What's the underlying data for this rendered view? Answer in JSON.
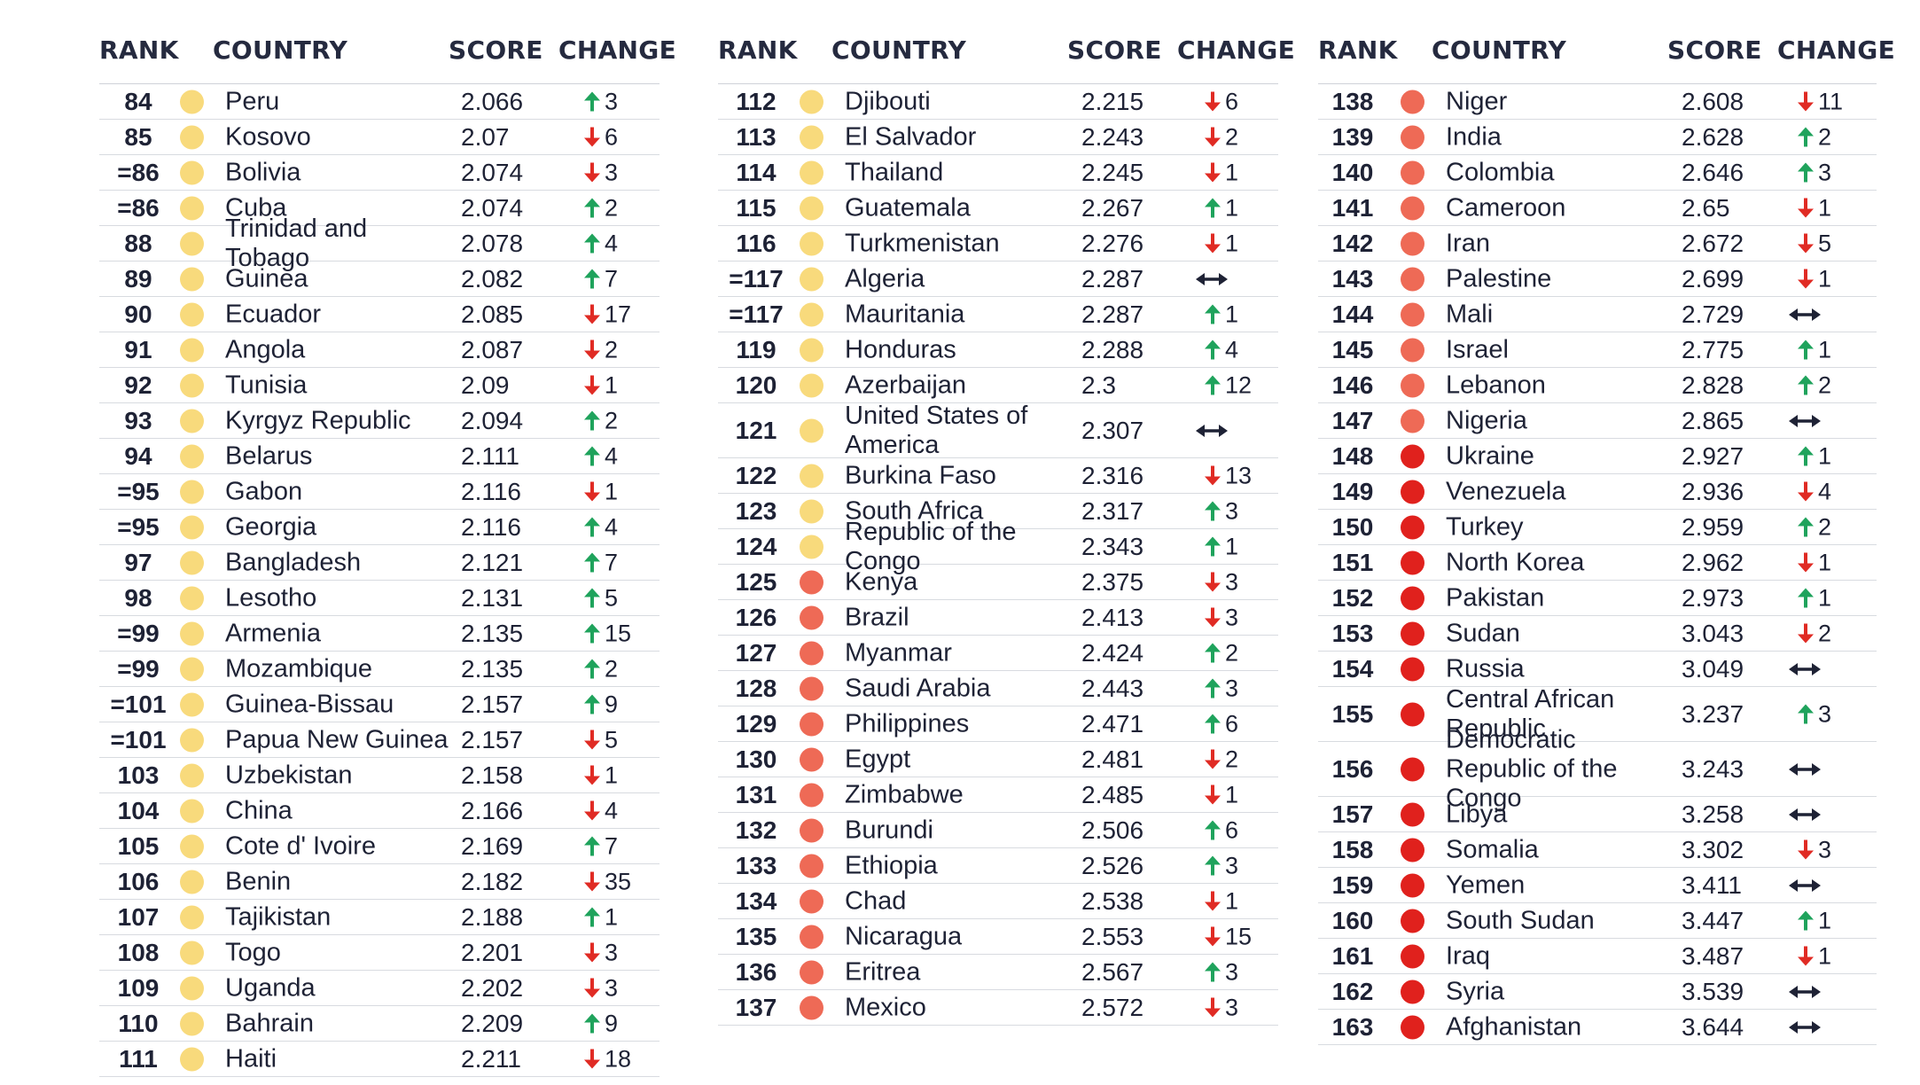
{
  "headers": {
    "rank": "RANK",
    "country": "COUNTRY",
    "score": "SCORE",
    "change": "CHANGE"
  },
  "colors": {
    "yellow": "#F8DA7C",
    "orange": "#EE6A56",
    "red": "#E0211D",
    "up": "#1FA35C",
    "down": "#E02B24",
    "same": "#1e2235"
  },
  "columns": [
    {
      "rows": [
        {
          "rank": "84",
          "country": "Peru",
          "score": "2.066",
          "dir": "up",
          "change": "3",
          "color": "yellow"
        },
        {
          "rank": "85",
          "country": "Kosovo",
          "score": "2.07",
          "dir": "down",
          "change": "6",
          "color": "yellow"
        },
        {
          "rank": "=86",
          "country": "Bolivia",
          "score": "2.074",
          "dir": "down",
          "change": "3",
          "color": "yellow"
        },
        {
          "rank": "=86",
          "country": "Cuba",
          "score": "2.074",
          "dir": "up",
          "change": "2",
          "color": "yellow"
        },
        {
          "rank": "88",
          "country": "Trinidad and Tobago",
          "score": "2.078",
          "dir": "up",
          "change": "4",
          "color": "yellow"
        },
        {
          "rank": "89",
          "country": "Guinea",
          "score": "2.082",
          "dir": "up",
          "change": "7",
          "color": "yellow"
        },
        {
          "rank": "90",
          "country": "Ecuador",
          "score": "2.085",
          "dir": "down",
          "change": "17",
          "color": "yellow"
        },
        {
          "rank": "91",
          "country": "Angola",
          "score": "2.087",
          "dir": "down",
          "change": "2",
          "color": "yellow"
        },
        {
          "rank": "92",
          "country": "Tunisia",
          "score": "2.09",
          "dir": "down",
          "change": "1",
          "color": "yellow"
        },
        {
          "rank": "93",
          "country": "Kyrgyz Republic",
          "score": "2.094",
          "dir": "up",
          "change": "2",
          "color": "yellow"
        },
        {
          "rank": "94",
          "country": "Belarus",
          "score": "2.111",
          "dir": "up",
          "change": "4",
          "color": "yellow"
        },
        {
          "rank": "=95",
          "country": "Gabon",
          "score": "2.116",
          "dir": "down",
          "change": "1",
          "color": "yellow"
        },
        {
          "rank": "=95",
          "country": "Georgia",
          "score": "2.116",
          "dir": "up",
          "change": "4",
          "color": "yellow"
        },
        {
          "rank": "97",
          "country": "Bangladesh",
          "score": "2.121",
          "dir": "up",
          "change": "7",
          "color": "yellow"
        },
        {
          "rank": "98",
          "country": "Lesotho",
          "score": "2.131",
          "dir": "up",
          "change": "5",
          "color": "yellow"
        },
        {
          "rank": "=99",
          "country": "Armenia",
          "score": "2.135",
          "dir": "up",
          "change": "15",
          "color": "yellow"
        },
        {
          "rank": "=99",
          "country": "Mozambique",
          "score": "2.135",
          "dir": "up",
          "change": "2",
          "color": "yellow"
        },
        {
          "rank": "=101",
          "country": "Guinea-Bissau",
          "score": "2.157",
          "dir": "up",
          "change": "9",
          "color": "yellow"
        },
        {
          "rank": "=101",
          "country": "Papua New Guinea",
          "score": "2.157",
          "dir": "down",
          "change": "5",
          "color": "yellow"
        },
        {
          "rank": "103",
          "country": "Uzbekistan",
          "score": "2.158",
          "dir": "down",
          "change": "1",
          "color": "yellow"
        },
        {
          "rank": "104",
          "country": "China",
          "score": "2.166",
          "dir": "down",
          "change": "4",
          "color": "yellow"
        },
        {
          "rank": "105",
          "country": "Cote d' Ivoire",
          "score": "2.169",
          "dir": "up",
          "change": "7",
          "color": "yellow"
        },
        {
          "rank": "106",
          "country": "Benin",
          "score": "2.182",
          "dir": "down",
          "change": "35",
          "color": "yellow"
        },
        {
          "rank": "107",
          "country": "Tajikistan",
          "score": "2.188",
          "dir": "up",
          "change": "1",
          "color": "yellow"
        },
        {
          "rank": "108",
          "country": "Togo",
          "score": "2.201",
          "dir": "down",
          "change": "3",
          "color": "yellow"
        },
        {
          "rank": "109",
          "country": "Uganda",
          "score": "2.202",
          "dir": "down",
          "change": "3",
          "color": "yellow"
        },
        {
          "rank": "110",
          "country": "Bahrain",
          "score": "2.209",
          "dir": "up",
          "change": "9",
          "color": "yellow"
        },
        {
          "rank": "111",
          "country": "Haiti",
          "score": "2.211",
          "dir": "down",
          "change": "18",
          "color": "yellow"
        }
      ]
    },
    {
      "rows": [
        {
          "rank": "112",
          "country": "Djibouti",
          "score": "2.215",
          "dir": "down",
          "change": "6",
          "color": "yellow"
        },
        {
          "rank": "113",
          "country": "El Salvador",
          "score": "2.243",
          "dir": "down",
          "change": "2",
          "color": "yellow"
        },
        {
          "rank": "114",
          "country": "Thailand",
          "score": "2.245",
          "dir": "down",
          "change": "1",
          "color": "yellow"
        },
        {
          "rank": "115",
          "country": "Guatemala",
          "score": "2.267",
          "dir": "up",
          "change": "1",
          "color": "yellow"
        },
        {
          "rank": "116",
          "country": "Turkmenistan",
          "score": "2.276",
          "dir": "down",
          "change": "1",
          "color": "yellow"
        },
        {
          "rank": "=117",
          "country": "Algeria",
          "score": "2.287",
          "dir": "same",
          "change": "",
          "color": "yellow"
        },
        {
          "rank": "=117",
          "country": "Mauritania",
          "score": "2.287",
          "dir": "up",
          "change": "1",
          "color": "yellow"
        },
        {
          "rank": "119",
          "country": "Honduras",
          "score": "2.288",
          "dir": "up",
          "change": "4",
          "color": "yellow"
        },
        {
          "rank": "120",
          "country": "Azerbaijan",
          "score": "2.3",
          "dir": "up",
          "change": "12",
          "color": "yellow"
        },
        {
          "rank": "121",
          "country": "United States of America",
          "score": "2.307",
          "dir": "same",
          "change": "",
          "color": "yellow"
        },
        {
          "rank": "122",
          "country": "Burkina Faso",
          "score": "2.316",
          "dir": "down",
          "change": "13",
          "color": "yellow"
        },
        {
          "rank": "123",
          "country": "South Africa",
          "score": "2.317",
          "dir": "up",
          "change": "3",
          "color": "yellow"
        },
        {
          "rank": "124",
          "country": "Republic of the Congo",
          "score": "2.343",
          "dir": "up",
          "change": "1",
          "color": "yellow"
        },
        {
          "rank": "125",
          "country": "Kenya",
          "score": "2.375",
          "dir": "down",
          "change": "3",
          "color": "orange"
        },
        {
          "rank": "126",
          "country": "Brazil",
          "score": "2.413",
          "dir": "down",
          "change": "3",
          "color": "orange"
        },
        {
          "rank": "127",
          "country": "Myanmar",
          "score": "2.424",
          "dir": "up",
          "change": "2",
          "color": "orange"
        },
        {
          "rank": "128",
          "country": "Saudi Arabia",
          "score": "2.443",
          "dir": "up",
          "change": "3",
          "color": "orange"
        },
        {
          "rank": "129",
          "country": "Philippines",
          "score": "2.471",
          "dir": "up",
          "change": "6",
          "color": "orange"
        },
        {
          "rank": "130",
          "country": "Egypt",
          "score": "2.481",
          "dir": "down",
          "change": "2",
          "color": "orange"
        },
        {
          "rank": "131",
          "country": "Zimbabwe",
          "score": "2.485",
          "dir": "down",
          "change": "1",
          "color": "orange"
        },
        {
          "rank": "132",
          "country": "Burundi",
          "score": "2.506",
          "dir": "up",
          "change": "6",
          "color": "orange"
        },
        {
          "rank": "133",
          "country": "Ethiopia",
          "score": "2.526",
          "dir": "up",
          "change": "3",
          "color": "orange"
        },
        {
          "rank": "134",
          "country": "Chad",
          "score": "2.538",
          "dir": "down",
          "change": "1",
          "color": "orange"
        },
        {
          "rank": "135",
          "country": "Nicaragua",
          "score": "2.553",
          "dir": "down",
          "change": "15",
          "color": "orange"
        },
        {
          "rank": "136",
          "country": "Eritrea",
          "score": "2.567",
          "dir": "up",
          "change": "3",
          "color": "orange"
        },
        {
          "rank": "137",
          "country": "Mexico",
          "score": "2.572",
          "dir": "down",
          "change": "3",
          "color": "orange"
        }
      ]
    },
    {
      "rows": [
        {
          "rank": "138",
          "country": "Niger",
          "score": "2.608",
          "dir": "down",
          "change": "11",
          "color": "orange"
        },
        {
          "rank": "139",
          "country": "India",
          "score": "2.628",
          "dir": "up",
          "change": "2",
          "color": "orange"
        },
        {
          "rank": "140",
          "country": "Colombia",
          "score": "2.646",
          "dir": "up",
          "change": "3",
          "color": "orange"
        },
        {
          "rank": "141",
          "country": "Cameroon",
          "score": "2.65",
          "dir": "down",
          "change": "1",
          "color": "orange"
        },
        {
          "rank": "142",
          "country": "Iran",
          "score": "2.672",
          "dir": "down",
          "change": "5",
          "color": "orange"
        },
        {
          "rank": "143",
          "country": "Palestine",
          "score": "2.699",
          "dir": "down",
          "change": "1",
          "color": "orange"
        },
        {
          "rank": "144",
          "country": "Mali",
          "score": "2.729",
          "dir": "same",
          "change": "",
          "color": "orange"
        },
        {
          "rank": "145",
          "country": "Israel",
          "score": "2.775",
          "dir": "up",
          "change": "1",
          "color": "orange"
        },
        {
          "rank": "146",
          "country": "Lebanon",
          "score": "2.828",
          "dir": "up",
          "change": "2",
          "color": "orange"
        },
        {
          "rank": "147",
          "country": "Nigeria",
          "score": "2.865",
          "dir": "same",
          "change": "",
          "color": "orange"
        },
        {
          "rank": "148",
          "country": "Ukraine",
          "score": "2.927",
          "dir": "up",
          "change": "1",
          "color": "red"
        },
        {
          "rank": "149",
          "country": "Venezuela",
          "score": "2.936",
          "dir": "down",
          "change": "4",
          "color": "red"
        },
        {
          "rank": "150",
          "country": "Turkey",
          "score": "2.959",
          "dir": "up",
          "change": "2",
          "color": "red"
        },
        {
          "rank": "151",
          "country": "North Korea",
          "score": "2.962",
          "dir": "down",
          "change": "1",
          "color": "red"
        },
        {
          "rank": "152",
          "country": "Pakistan",
          "score": "2.973",
          "dir": "up",
          "change": "1",
          "color": "red"
        },
        {
          "rank": "153",
          "country": "Sudan",
          "score": "3.043",
          "dir": "down",
          "change": "2",
          "color": "red"
        },
        {
          "rank": "154",
          "country": "Russia",
          "score": "3.049",
          "dir": "same",
          "change": "",
          "color": "red"
        },
        {
          "rank": "155",
          "country": "Central African Republic",
          "score": "3.237",
          "dir": "up",
          "change": "3",
          "color": "red"
        },
        {
          "rank": "156",
          "country": "Democratic Republic of the Congo",
          "score": "3.243",
          "dir": "same",
          "change": "",
          "color": "red"
        },
        {
          "rank": "157",
          "country": "Libya",
          "score": "3.258",
          "dir": "same",
          "change": "",
          "color": "red"
        },
        {
          "rank": "158",
          "country": "Somalia",
          "score": "3.302",
          "dir": "down",
          "change": "3",
          "color": "red"
        },
        {
          "rank": "159",
          "country": "Yemen",
          "score": "3.411",
          "dir": "same",
          "change": "",
          "color": "red"
        },
        {
          "rank": "160",
          "country": "South Sudan",
          "score": "3.447",
          "dir": "up",
          "change": "1",
          "color": "red"
        },
        {
          "rank": "161",
          "country": "Iraq",
          "score": "3.487",
          "dir": "down",
          "change": "1",
          "color": "red"
        },
        {
          "rank": "162",
          "country": "Syria",
          "score": "3.539",
          "dir": "same",
          "change": "",
          "color": "red"
        },
        {
          "rank": "163",
          "country": "Afghanistan",
          "score": "3.644",
          "dir": "same",
          "change": "",
          "color": "red"
        }
      ]
    }
  ]
}
